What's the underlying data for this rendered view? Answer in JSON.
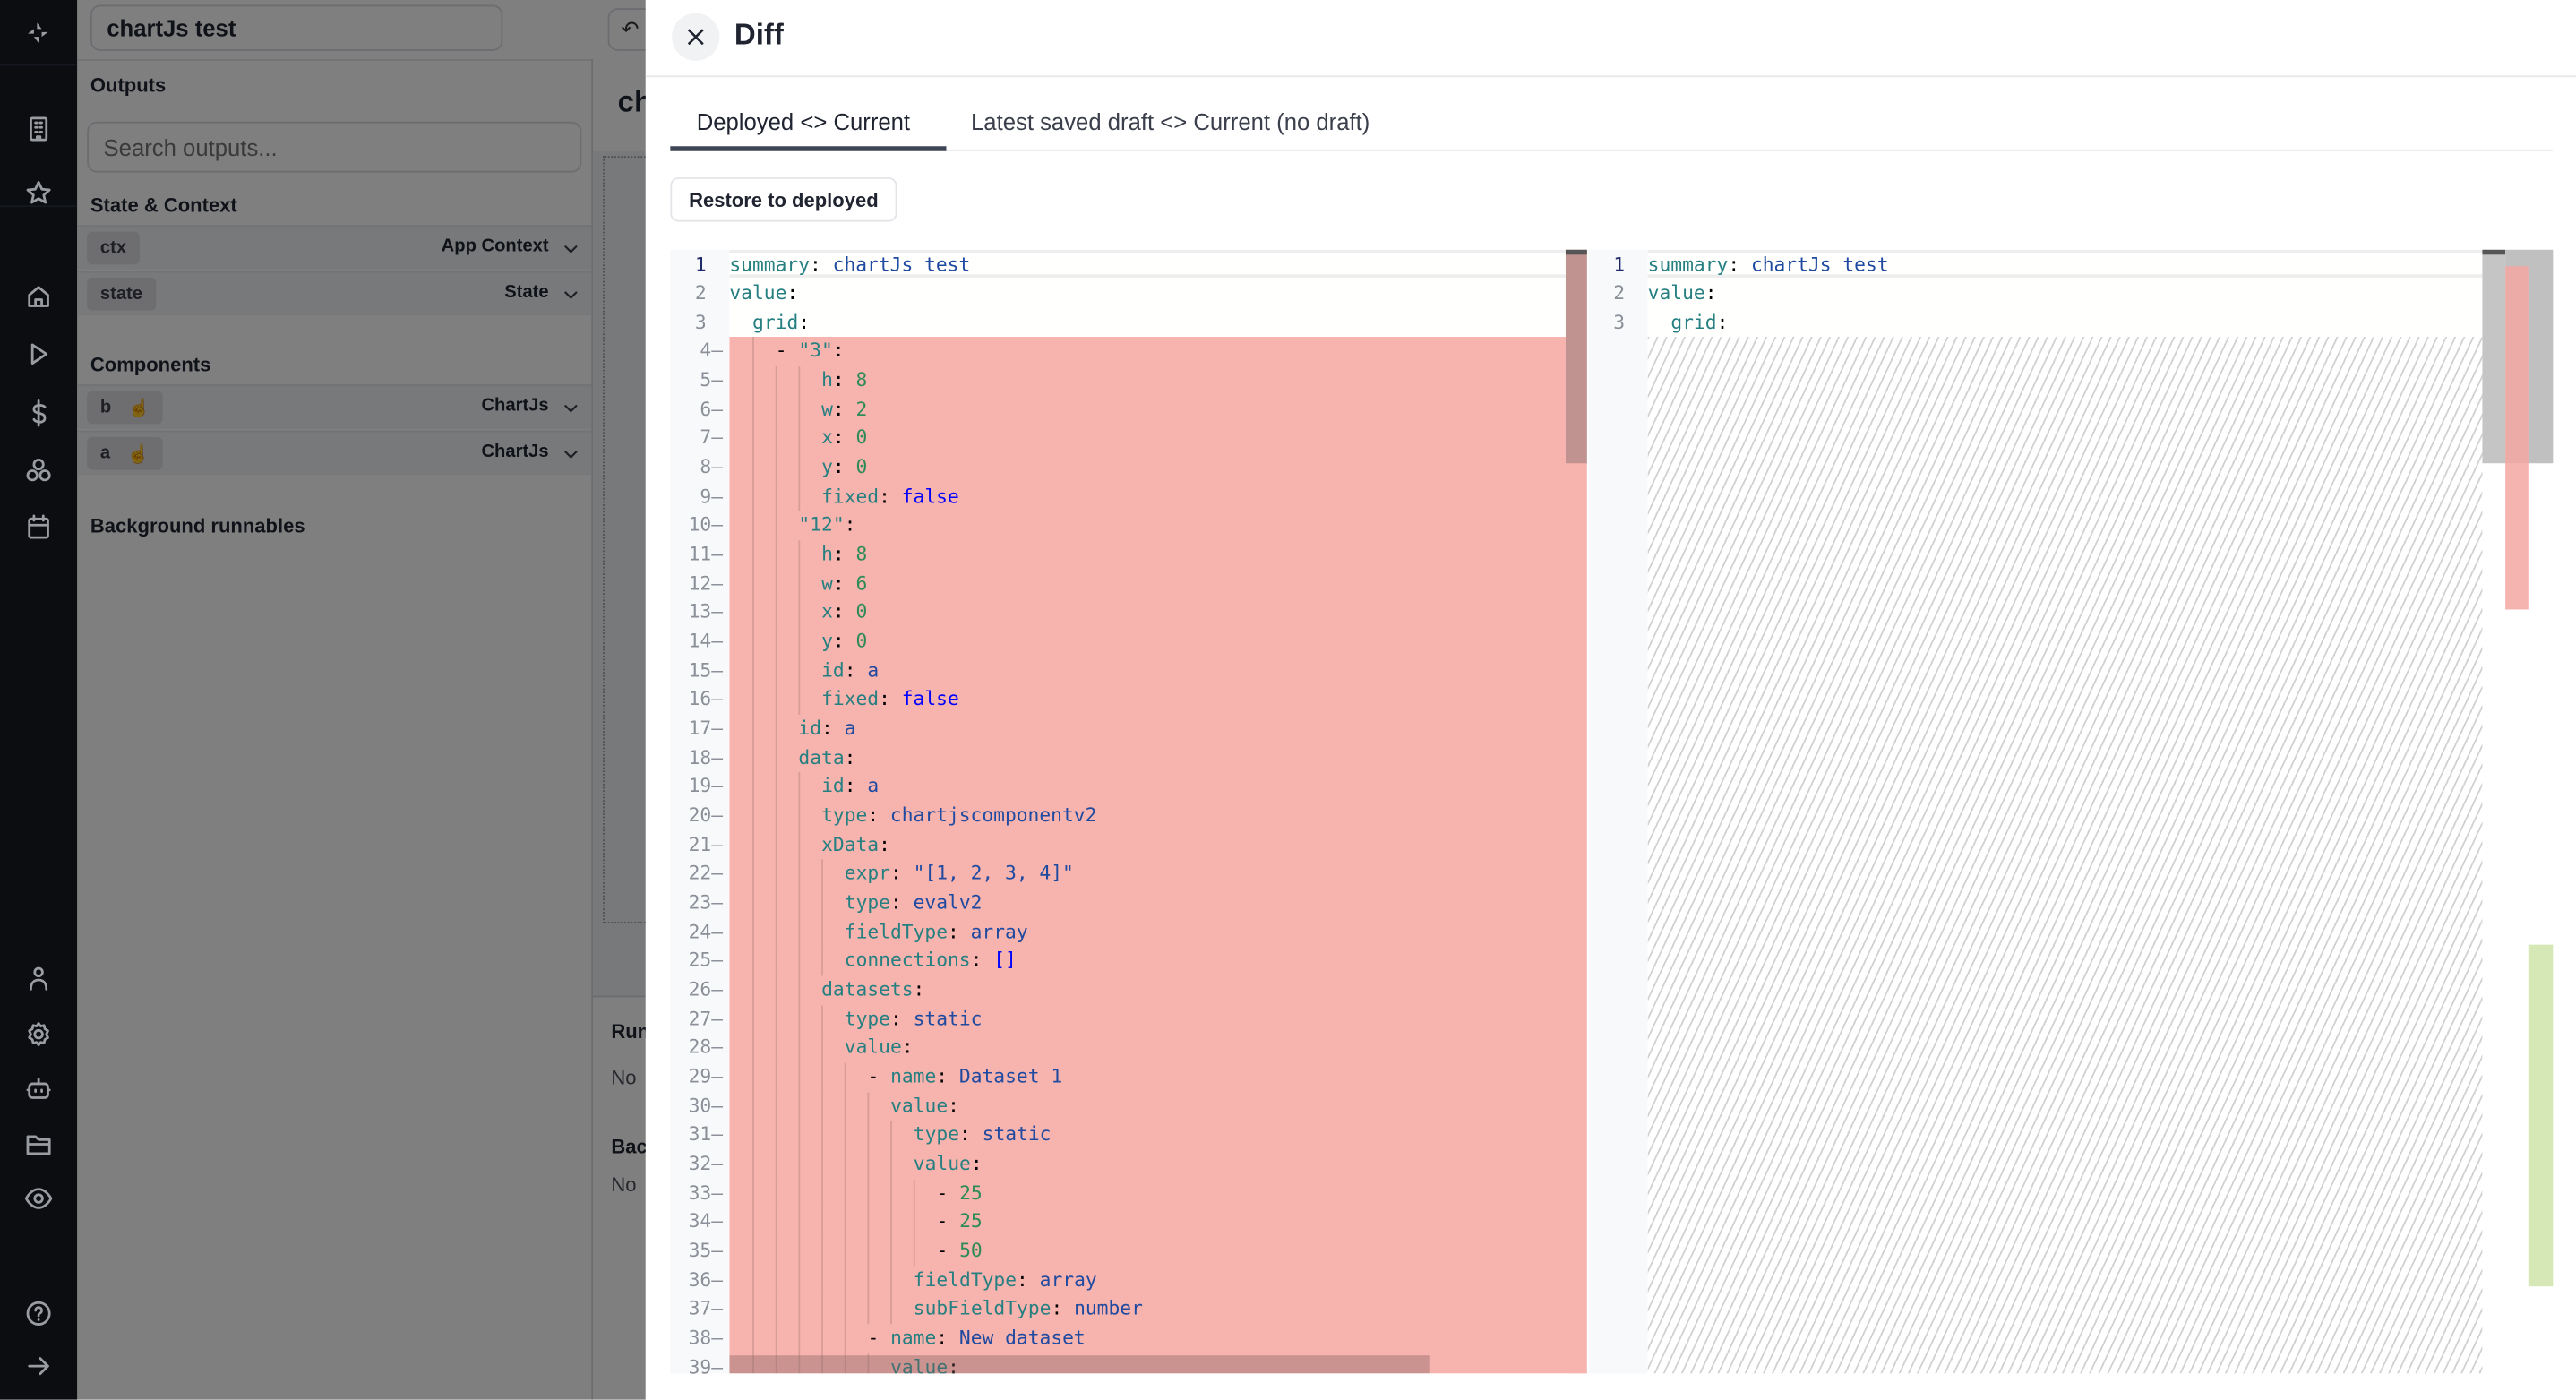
{
  "app": {
    "name_input": "chartJs test",
    "outputs_label": "Outputs",
    "search_placeholder": "Search outputs...",
    "state_context_label": "State & Context",
    "state_rows": [
      {
        "id": "ctx",
        "label": "App Context"
      },
      {
        "id": "state",
        "label": "State"
      }
    ],
    "components_label": "Components",
    "component_rows": [
      {
        "id": "b",
        "label": "ChartJs"
      },
      {
        "id": "a",
        "label": "ChartJs"
      }
    ],
    "background_runnables_label": "Background runnables",
    "mid_title_partial": "ch",
    "mid_run_partial": "Run",
    "mid_no_1": "No",
    "mid_bac_partial": "Bac",
    "mid_no_2": "No"
  },
  "rail_icons": [
    "windmill-logo-icon",
    "building-icon",
    "star-icon",
    "home-icon",
    "play-icon",
    "dollar-icon",
    "cubes-icon",
    "calendar-icon",
    "user-icon",
    "gear-icon",
    "bot-icon",
    "folder-icon",
    "eye-icon",
    "help-icon",
    "arrow-right-icon"
  ],
  "drawer": {
    "title": "Diff",
    "tabs": [
      {
        "label": "Deployed <> Current",
        "active": true
      },
      {
        "label": "Latest saved draft <> Current (no draft)",
        "active": false
      }
    ],
    "restore_button": "Restore to deployed"
  },
  "diff": {
    "colors": {
      "removed": "#f7b3ae",
      "added": "#d5e8b5",
      "key": "#267f80",
      "string": "#1f4aa0",
      "number": "#2e8b57",
      "boolean": "#0000ff"
    },
    "left_lines": [
      {
        "n": "1",
        "i": 0,
        "t": [
          [
            "k",
            "summary"
          ],
          [
            "p",
            ": "
          ],
          [
            "s",
            "chartJs test"
          ]
        ]
      },
      {
        "n": "2",
        "i": 0,
        "t": [
          [
            "k",
            "value"
          ],
          [
            "p",
            ":"
          ]
        ]
      },
      {
        "n": "3",
        "i": 2,
        "t": [
          [
            "k",
            "grid"
          ],
          [
            "p",
            ":"
          ]
        ]
      },
      {
        "n": "4",
        "i": 4,
        "d": true,
        "t": [
          [
            "p",
            "- "
          ],
          [
            "k",
            "\"3\""
          ],
          [
            "p",
            ":"
          ]
        ]
      },
      {
        "n": "5",
        "i": 8,
        "d": true,
        "t": [
          [
            "k",
            "h"
          ],
          [
            "p",
            ": "
          ],
          [
            "n",
            "8"
          ]
        ]
      },
      {
        "n": "6",
        "i": 8,
        "d": true,
        "t": [
          [
            "k",
            "w"
          ],
          [
            "p",
            ": "
          ],
          [
            "n",
            "2"
          ]
        ]
      },
      {
        "n": "7",
        "i": 8,
        "d": true,
        "t": [
          [
            "k",
            "x"
          ],
          [
            "p",
            ": "
          ],
          [
            "n",
            "0"
          ]
        ]
      },
      {
        "n": "8",
        "i": 8,
        "d": true,
        "t": [
          [
            "k",
            "y"
          ],
          [
            "p",
            ": "
          ],
          [
            "n",
            "0"
          ]
        ]
      },
      {
        "n": "9",
        "i": 8,
        "d": true,
        "t": [
          [
            "k",
            "fixed"
          ],
          [
            "p",
            ": "
          ],
          [
            "b",
            "false"
          ]
        ]
      },
      {
        "n": "10",
        "i": 6,
        "d": true,
        "t": [
          [
            "k",
            "\"12\""
          ],
          [
            "p",
            ":"
          ]
        ]
      },
      {
        "n": "11",
        "i": 8,
        "d": true,
        "t": [
          [
            "k",
            "h"
          ],
          [
            "p",
            ": "
          ],
          [
            "n",
            "8"
          ]
        ]
      },
      {
        "n": "12",
        "i": 8,
        "d": true,
        "t": [
          [
            "k",
            "w"
          ],
          [
            "p",
            ": "
          ],
          [
            "n",
            "6"
          ]
        ]
      },
      {
        "n": "13",
        "i": 8,
        "d": true,
        "t": [
          [
            "k",
            "x"
          ],
          [
            "p",
            ": "
          ],
          [
            "n",
            "0"
          ]
        ]
      },
      {
        "n": "14",
        "i": 8,
        "d": true,
        "t": [
          [
            "k",
            "y"
          ],
          [
            "p",
            ": "
          ],
          [
            "n",
            "0"
          ]
        ]
      },
      {
        "n": "15",
        "i": 8,
        "d": true,
        "t": [
          [
            "k",
            "id"
          ],
          [
            "p",
            ": "
          ],
          [
            "s",
            "a"
          ]
        ]
      },
      {
        "n": "16",
        "i": 8,
        "d": true,
        "t": [
          [
            "k",
            "fixed"
          ],
          [
            "p",
            ": "
          ],
          [
            "b",
            "false"
          ]
        ]
      },
      {
        "n": "17",
        "i": 6,
        "d": true,
        "t": [
          [
            "k",
            "id"
          ],
          [
            "p",
            ": "
          ],
          [
            "s",
            "a"
          ]
        ]
      },
      {
        "n": "18",
        "i": 6,
        "d": true,
        "t": [
          [
            "k",
            "data"
          ],
          [
            "p",
            ":"
          ]
        ]
      },
      {
        "n": "19",
        "i": 8,
        "d": true,
        "t": [
          [
            "k",
            "id"
          ],
          [
            "p",
            ": "
          ],
          [
            "s",
            "a"
          ]
        ]
      },
      {
        "n": "20",
        "i": 8,
        "d": true,
        "t": [
          [
            "k",
            "type"
          ],
          [
            "p",
            ": "
          ],
          [
            "s",
            "chartjscomponentv2"
          ]
        ]
      },
      {
        "n": "21",
        "i": 8,
        "d": true,
        "t": [
          [
            "k",
            "xData"
          ],
          [
            "p",
            ":"
          ]
        ]
      },
      {
        "n": "22",
        "i": 10,
        "d": true,
        "t": [
          [
            "k",
            "expr"
          ],
          [
            "p",
            ": "
          ],
          [
            "s",
            "\"[1, 2, 3, 4]\""
          ]
        ]
      },
      {
        "n": "23",
        "i": 10,
        "d": true,
        "t": [
          [
            "k",
            "type"
          ],
          [
            "p",
            ": "
          ],
          [
            "s",
            "evalv2"
          ]
        ]
      },
      {
        "n": "24",
        "i": 10,
        "d": true,
        "t": [
          [
            "k",
            "fieldType"
          ],
          [
            "p",
            ": "
          ],
          [
            "s",
            "array"
          ]
        ]
      },
      {
        "n": "25",
        "i": 10,
        "d": true,
        "t": [
          [
            "k",
            "connections"
          ],
          [
            "p",
            ": "
          ],
          [
            "b",
            "[]"
          ]
        ]
      },
      {
        "n": "26",
        "i": 8,
        "d": true,
        "t": [
          [
            "k",
            "datasets"
          ],
          [
            "p",
            ":"
          ]
        ]
      },
      {
        "n": "27",
        "i": 10,
        "d": true,
        "t": [
          [
            "k",
            "type"
          ],
          [
            "p",
            ": "
          ],
          [
            "s",
            "static"
          ]
        ]
      },
      {
        "n": "28",
        "i": 10,
        "d": true,
        "t": [
          [
            "k",
            "value"
          ],
          [
            "p",
            ":"
          ]
        ]
      },
      {
        "n": "29",
        "i": 12,
        "d": true,
        "t": [
          [
            "p",
            "- "
          ],
          [
            "k",
            "name"
          ],
          [
            "p",
            ": "
          ],
          [
            "s",
            "Dataset 1"
          ]
        ]
      },
      {
        "n": "30",
        "i": 14,
        "d": true,
        "t": [
          [
            "k",
            "value"
          ],
          [
            "p",
            ":"
          ]
        ]
      },
      {
        "n": "31",
        "i": 16,
        "d": true,
        "t": [
          [
            "k",
            "type"
          ],
          [
            "p",
            ": "
          ],
          [
            "s",
            "static"
          ]
        ]
      },
      {
        "n": "32",
        "i": 16,
        "d": true,
        "t": [
          [
            "k",
            "value"
          ],
          [
            "p",
            ":"
          ]
        ]
      },
      {
        "n": "33",
        "i": 18,
        "d": true,
        "t": [
          [
            "p",
            "- "
          ],
          [
            "n",
            "25"
          ]
        ]
      },
      {
        "n": "34",
        "i": 18,
        "d": true,
        "t": [
          [
            "p",
            "- "
          ],
          [
            "n",
            "25"
          ]
        ]
      },
      {
        "n": "35",
        "i": 18,
        "d": true,
        "t": [
          [
            "p",
            "- "
          ],
          [
            "n",
            "50"
          ]
        ]
      },
      {
        "n": "36",
        "i": 16,
        "d": true,
        "t": [
          [
            "k",
            "fieldType"
          ],
          [
            "p",
            ": "
          ],
          [
            "s",
            "array"
          ]
        ]
      },
      {
        "n": "37",
        "i": 16,
        "d": true,
        "t": [
          [
            "k",
            "subFieldType"
          ],
          [
            "p",
            ": "
          ],
          [
            "s",
            "number"
          ]
        ]
      },
      {
        "n": "38",
        "i": 12,
        "d": true,
        "t": [
          [
            "p",
            "- "
          ],
          [
            "k",
            "name"
          ],
          [
            "p",
            ": "
          ],
          [
            "s",
            "New dataset"
          ]
        ]
      },
      {
        "n": "39",
        "i": 14,
        "d": true,
        "t": [
          [
            "k",
            "value"
          ],
          [
            "p",
            ":"
          ]
        ]
      }
    ],
    "right_lines": [
      {
        "n": "1",
        "i": 0,
        "t": [
          [
            "k",
            "summary"
          ],
          [
            "p",
            ": "
          ],
          [
            "s",
            "chartJs test"
          ]
        ]
      },
      {
        "n": "2",
        "i": 0,
        "t": [
          [
            "k",
            "value"
          ],
          [
            "p",
            ":"
          ]
        ]
      },
      {
        "n": "3",
        "i": 2,
        "t": [
          [
            "k",
            "grid"
          ],
          [
            "p",
            ":"
          ]
        ]
      }
    ]
  }
}
